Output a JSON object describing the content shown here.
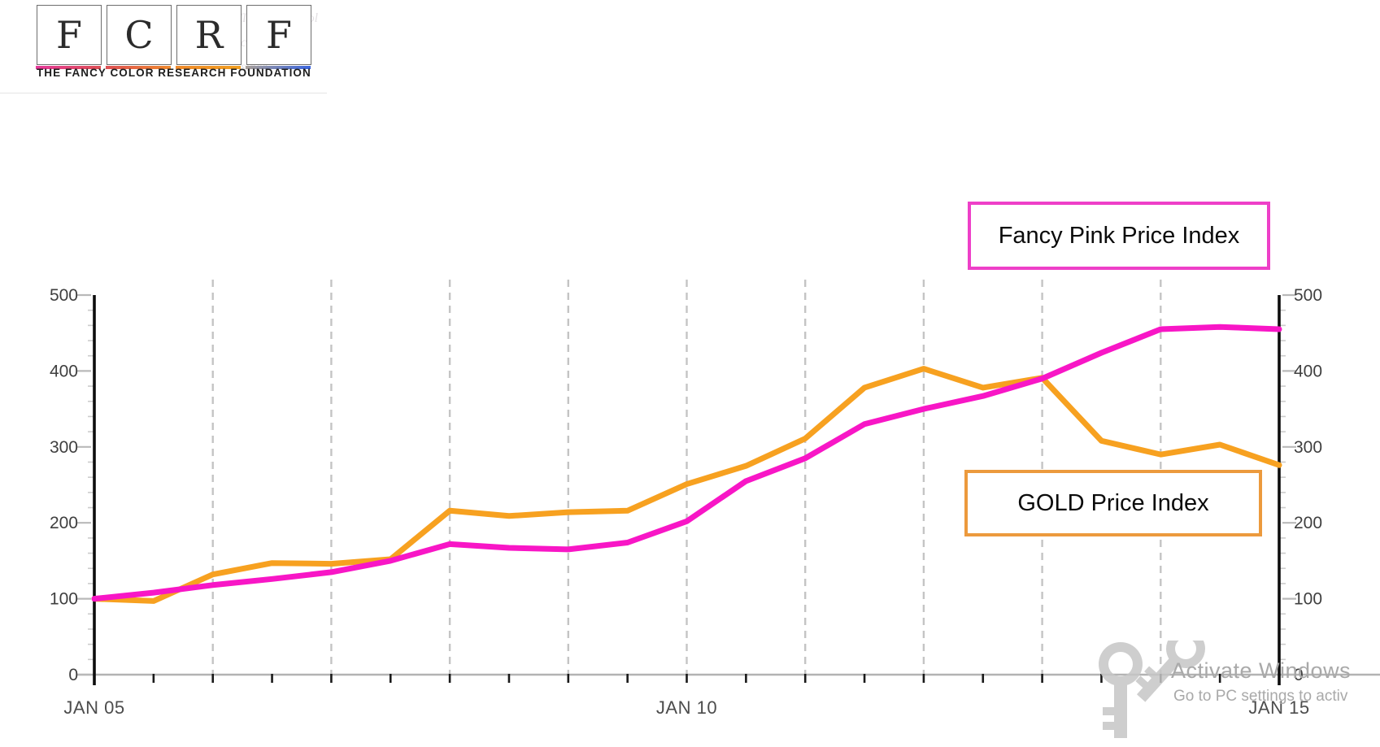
{
  "logo": {
    "letters": [
      "F",
      "C",
      "R",
      "F"
    ],
    "caption": "THE FANCY COLOR RESEARCH FOUNDATION",
    "ghost_lines": [
      "The Fancy Col",
      "color diamo",
      "since"
    ],
    "underline_gradients": [
      [
        "#e6399b",
        "#df4f55"
      ],
      [
        "#df4f55",
        "#f08a2c"
      ],
      [
        "#f08a2c",
        "#f3a01f"
      ],
      [
        "#a89f98",
        "#3b66e0"
      ]
    ]
  },
  "legend": {
    "pink": {
      "label": "Fancy Pink Price Index",
      "border_color": "#ee3fc8"
    },
    "gold": {
      "label": "GOLD Price Index",
      "border_color": "#ec9a3d"
    }
  },
  "watermark": {
    "line1": "Activate Windows",
    "line2": "Go to PC settings to activ"
  },
  "chart_data": {
    "type": "line",
    "title": "",
    "xlabel": "",
    "ylabel": "",
    "ylim": [
      0,
      500
    ],
    "x_start_year": 2005,
    "x_end_year": 2015,
    "x_step_years": 0.5,
    "grid": "vertical-dashed-yearly",
    "gridline_years": [
      2006,
      2007,
      2008,
      2009,
      2010,
      2011,
      2012,
      2013,
      2014
    ],
    "x_tick_labels": [
      {
        "label": "JAN 05",
        "year": 2005
      },
      {
        "label": "JAN 10",
        "year": 2010
      },
      {
        "label": "JAN 15",
        "year": 2015
      }
    ],
    "y_ticks": [
      0,
      100,
      200,
      300,
      400,
      500
    ],
    "y_minor_tick_step": 20,
    "dual_y_axis": true,
    "legend_position": "floating-boxes",
    "x": [
      2005,
      2005.5,
      2006,
      2006.5,
      2007,
      2007.5,
      2008,
      2008.5,
      2009,
      2009.5,
      2010,
      2010.5,
      2011,
      2011.5,
      2012,
      2012.5,
      2013,
      2013.5,
      2014,
      2014.5,
      2015
    ],
    "series": [
      {
        "name": "GOLD Price Index",
        "color": "#f7a120",
        "values": [
          100,
          97,
          132,
          147,
          146,
          152,
          216,
          209,
          214,
          216,
          251,
          275,
          311,
          378,
          403,
          378,
          391,
          308,
          290,
          303,
          276
        ]
      },
      {
        "name": "Fancy Pink Price Index",
        "color": "#f816c6",
        "values": [
          100,
          108,
          118,
          126,
          135,
          150,
          172,
          167,
          165,
          174,
          202,
          255,
          285,
          330,
          350,
          367,
          390,
          424,
          455,
          458,
          455
        ]
      }
    ]
  }
}
